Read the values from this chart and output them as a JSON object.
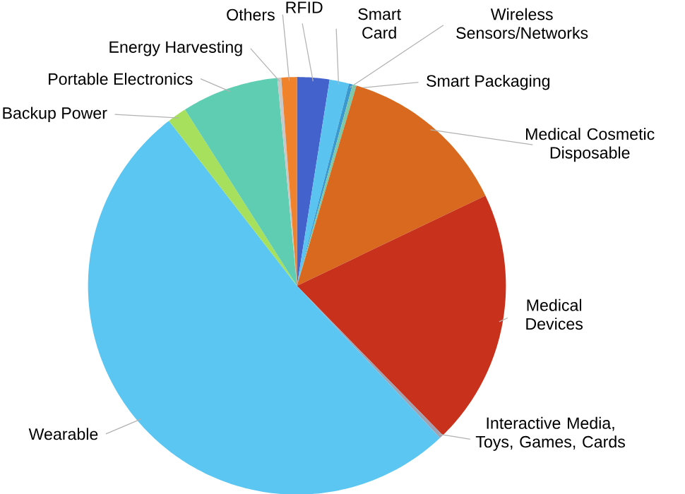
{
  "chart_data": {
    "type": "pie",
    "categories": [
      "RFID",
      "Smart Card",
      "Wireless Sensors/Networks",
      "Smart Packaging",
      "Medical Cosmetic Disposable",
      "Medical Devices",
      "Interactive Media, Toys, Games, Cards",
      "Wearable",
      "Backup Power",
      "Portable Electronics",
      "Energy Harvesting",
      "Others"
    ],
    "values": [
      2.5,
      1.5,
      0.3,
      0.3,
      13.3,
      19.8,
      0.3,
      51.5,
      1.5,
      7.5,
      0.3,
      1.2
    ],
    "colors": [
      "#4462cc",
      "#5bc3f0",
      "#3a9ad0",
      "#7cc8a8",
      "#d8691f",
      "#c8321c",
      "#a0a0b0",
      "#5cc6f2",
      "#a6e05c",
      "#5fcdb2",
      "#c8c8c8",
      "#f0822c"
    ]
  }
}
